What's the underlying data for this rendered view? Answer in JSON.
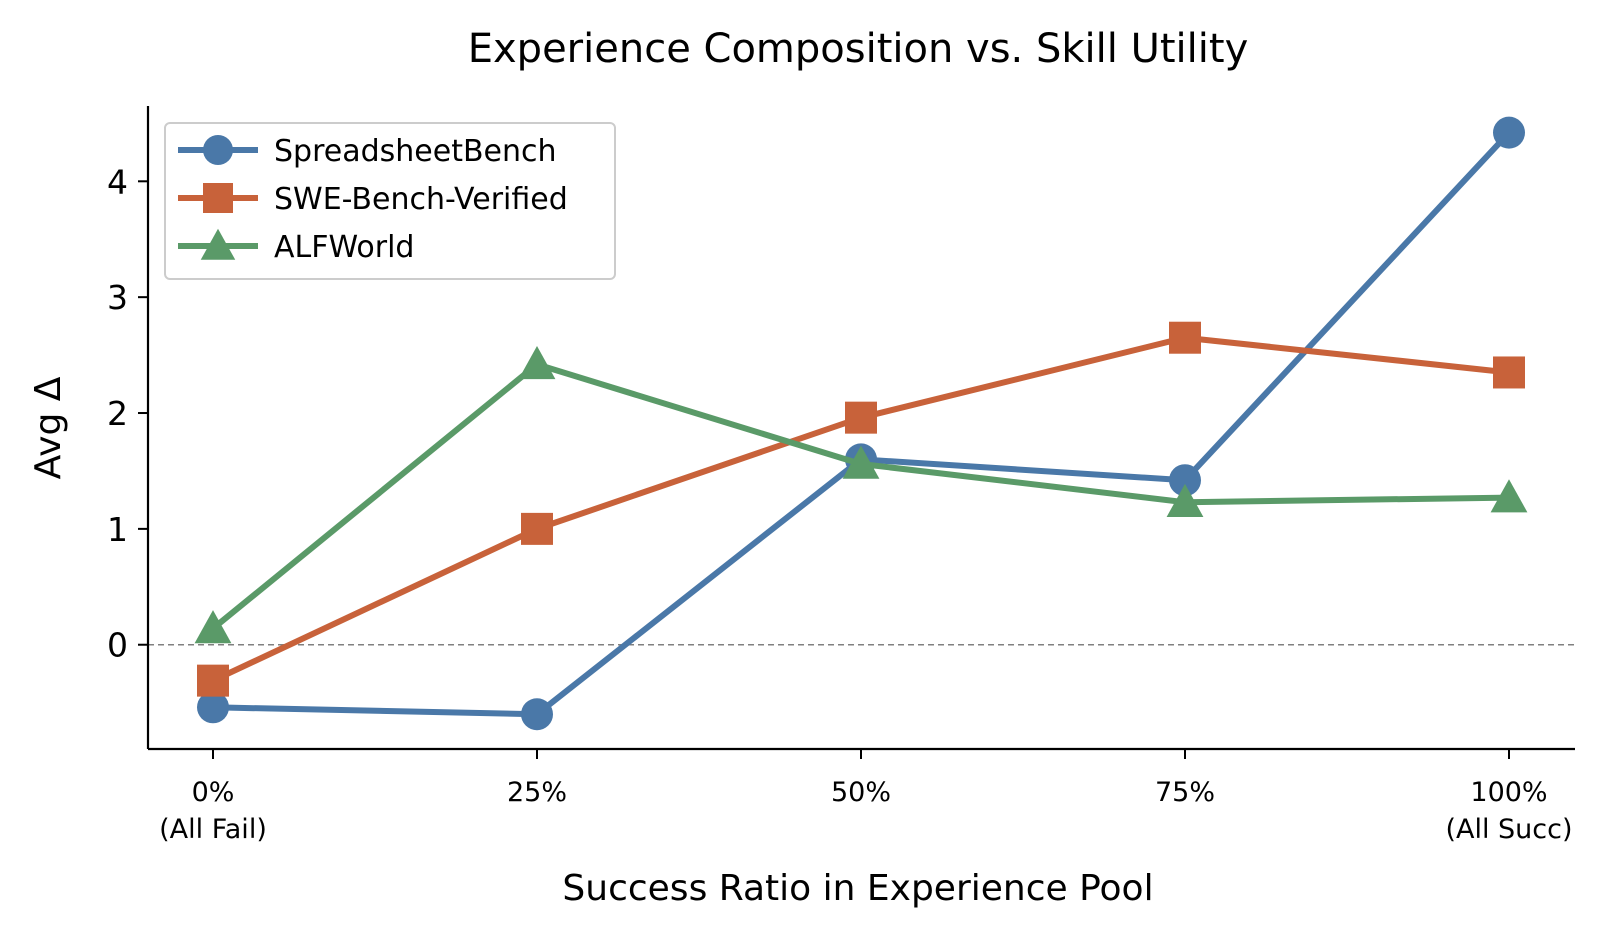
{
  "chart_data": {
    "type": "line",
    "title": "Experience Composition vs. Skill Utility",
    "xlabel": "Success Ratio in Experience Pool",
    "ylabel": "Avg Δ",
    "categories": [
      [
        "0%",
        "(All Fail)"
      ],
      [
        "25%",
        ""
      ],
      [
        "50%",
        ""
      ],
      [
        "75%",
        ""
      ],
      [
        "100%",
        "(All Succ)"
      ]
    ],
    "yticks": [
      "0",
      "1",
      "2",
      "3",
      "4"
    ],
    "ylim": [
      -0.9,
      4.65
    ],
    "legend_position": "top-left",
    "reference_line": {
      "y": 0,
      "style": "dashed",
      "color": "#808080"
    },
    "series": [
      {
        "name": "SpreadsheetBench",
        "color": "#4a78a8",
        "marker": "circle",
        "values": [
          -0.54,
          -0.6,
          1.6,
          1.42,
          4.42
        ]
      },
      {
        "name": "SWE-Bench-Verified",
        "color": "#c8623a",
        "marker": "square",
        "values": [
          -0.31,
          1.0,
          1.96,
          2.65,
          2.35
        ]
      },
      {
        "name": "ALFWorld",
        "color": "#5a9a68",
        "marker": "triangle",
        "values": [
          0.14,
          2.42,
          1.56,
          1.23,
          1.27
        ]
      }
    ]
  }
}
